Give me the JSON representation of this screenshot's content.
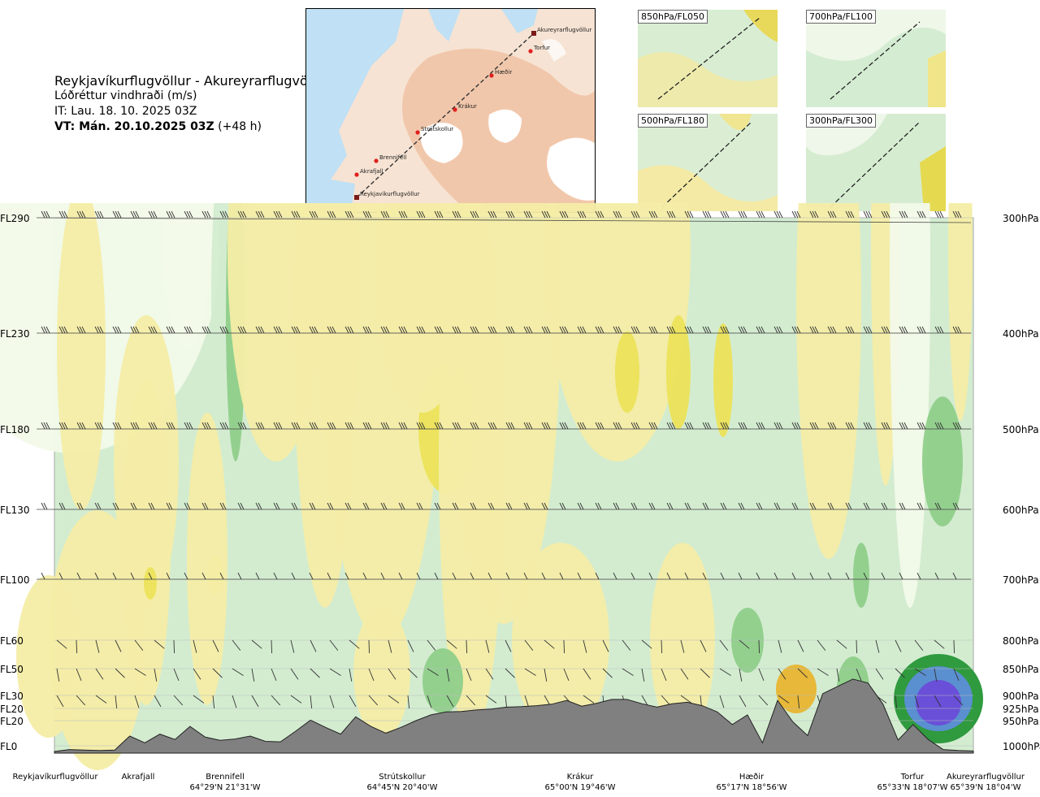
{
  "header": {
    "route": "Reykjavíkurflugvöllur - Akureyrarflugvöllur",
    "variable": "Lóðréttur vindhraði (m/s)",
    "issue_time": "IT: Lau. 18. 10. 2025 03Z",
    "valid_label": "VT: Mán. 20.10.2025 03Z",
    "lead": "(+48 h)"
  },
  "map": {
    "points": [
      {
        "name": "Akureyrarflugvöllur"
      },
      {
        "name": "Torfur"
      },
      {
        "name": "Hæðir"
      },
      {
        "name": "Krákur"
      },
      {
        "name": "Strútskollur"
      },
      {
        "name": "Brennifell"
      },
      {
        "name": "Akrafjall"
      },
      {
        "name": "Reykjavíkurflugvöllur"
      }
    ]
  },
  "panels": [
    {
      "label": "850hPa/FL050"
    },
    {
      "label": "700hPa/FL100"
    },
    {
      "label": "500hPa/FL180"
    },
    {
      "label": "300hPa/FL300"
    }
  ],
  "chart_data": {
    "type": "heatmap",
    "title": "Reykjavíkurflugvöllur - Akureyrarflugvöllur",
    "variable": "Lóðréttur vindhraði (m/s)",
    "flight_levels": [
      "FL290",
      "FL230",
      "FL180",
      "FL130",
      "FL100",
      "FL60",
      "FL50",
      "FL30",
      "FL20",
      "FL20",
      "FL0"
    ],
    "pressure_levels": [
      "300hPa",
      "400hPa",
      "500hPa",
      "600hPa",
      "700hPa",
      "800hPa",
      "850hPa",
      "900hPa",
      "925hPa",
      "950hPa",
      "1000hPa"
    ],
    "colors": {
      "strong_down": "#6a4fd8",
      "down": "#5a8fd0",
      "down_green_dark": "#2f9a3e",
      "down_green": "#8fcf8a",
      "weak_down": "#d3ecd0",
      "neutral": "#f2fae9",
      "weak_up": "#f4eda6",
      "up": "#ece35a",
      "strong_up": "#e8b530",
      "terrain": "#808080"
    },
    "locations": [
      {
        "name": "Reykjavíkurflugvöllur",
        "coord": ""
      },
      {
        "name": "Akrafjall",
        "coord": ""
      },
      {
        "name": "Brennifell",
        "coord": "64°29'N 21°31'W"
      },
      {
        "name": "Strútskollur",
        "coord": "64°45'N 20°40'W"
      },
      {
        "name": "Krákur",
        "coord": "65°00'N 19°46'W"
      },
      {
        "name": "Hæðir",
        "coord": "65°17'N 18°56'W"
      },
      {
        "name": "Torfur",
        "coord": "65°33'N 18°07'W"
      },
      {
        "name": "Akureyrarflugvöllur",
        "coord": "65°39'N 18°04'W"
      }
    ],
    "terrain_profile_m": [
      0,
      40,
      30,
      20,
      30,
      320,
      180,
      360,
      250,
      520,
      300,
      230,
      260,
      320,
      210,
      200,
      420,
      650,
      500,
      360,
      720,
      520,
      380,
      500,
      640,
      760,
      820,
      830,
      860,
      880,
      920,
      930,
      950,
      980,
      1060,
      940,
      1000,
      1080,
      1080,
      990,
      920,
      990,
      1020,
      950,
      820,
      560,
      760,
      180,
      1060,
      620,
      330,
      1200,
      1350,
      1500,
      1420,
      980,
      240,
      560,
      250,
      40,
      20,
      10
    ]
  }
}
